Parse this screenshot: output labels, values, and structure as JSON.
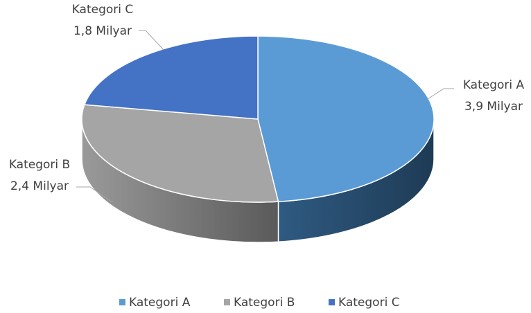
{
  "chart_data": {
    "type": "pie3d",
    "categories": [
      "Kategori A",
      "Kategori B",
      "Kategori C"
    ],
    "values": [
      3.9,
      2.4,
      1.8
    ],
    "value_labels": [
      "3,9 Milyar",
      "2,4 Milyar",
      "1,8 Milyar"
    ],
    "colors": [
      "#5b9bd5",
      "#a5a5a5",
      "#4472c4"
    ],
    "legend": "bottom"
  }
}
